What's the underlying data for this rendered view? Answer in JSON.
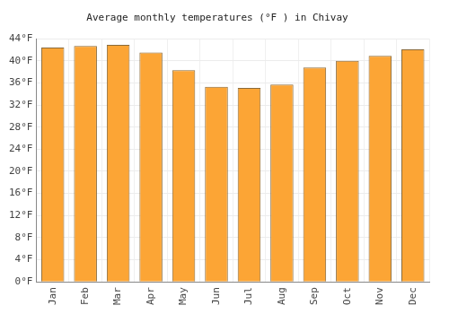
{
  "chart_data": {
    "type": "bar",
    "title": "Average monthly temperatures (°F ) in Chivay",
    "categories": [
      "Jan",
      "Feb",
      "Mar",
      "Apr",
      "May",
      "Jun",
      "Jul",
      "Aug",
      "Sep",
      "Oct",
      "Nov",
      "Dec"
    ],
    "values": [
      42.4,
      42.7,
      42.9,
      41.5,
      38.3,
      35.3,
      35.1,
      35.7,
      38.8,
      40.0,
      40.9,
      42.1
    ],
    "color": "#fca535",
    "ylim": [
      0,
      44
    ],
    "yticks": [
      {
        "value": 0,
        "label": "0°F"
      },
      {
        "value": 4,
        "label": "4°F"
      },
      {
        "value": 8,
        "label": "8°F"
      },
      {
        "value": 12,
        "label": "12°F"
      },
      {
        "value": 16,
        "label": "16°F"
      },
      {
        "value": 20,
        "label": "20°F"
      },
      {
        "value": 24,
        "label": "24°F"
      },
      {
        "value": 28,
        "label": "28°F"
      },
      {
        "value": 32,
        "label": "32°F"
      },
      {
        "value": 36,
        "label": "36°F"
      },
      {
        "value": 40,
        "label": "40°F"
      },
      {
        "value": 44,
        "label": "44°F"
      }
    ],
    "grid": true
  }
}
